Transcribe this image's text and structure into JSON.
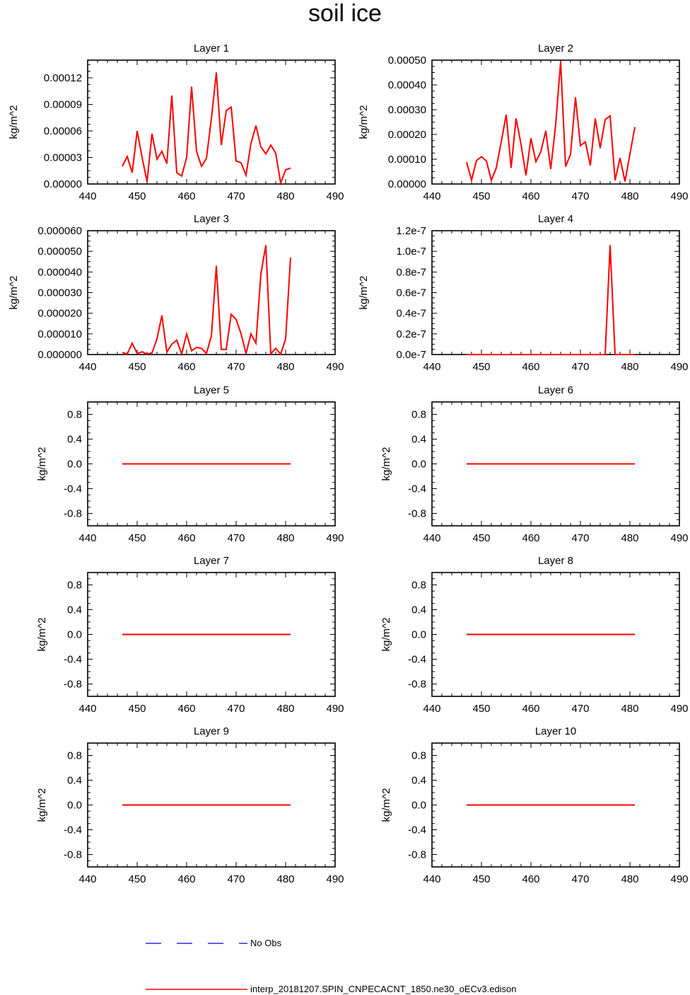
{
  "title": "soil ice",
  "colors": {
    "model": "#ff0000",
    "obs": "#0000cc",
    "axis": "#000000",
    "background": "#ffffff"
  },
  "legend": [
    {
      "label": "No Obs",
      "style": "dashed",
      "color": "#0000cc"
    },
    {
      "label": "interp_20181207.SPIN_CNPECACNT_1850.ne30_oECv3.edison",
      "style": "solid",
      "color": "#ff0000"
    }
  ],
  "chart_data": [
    {
      "type": "line",
      "title": "Layer 1",
      "ylabel": "kg/m^2",
      "xlim": [
        440,
        490
      ],
      "xticks": [
        "440",
        "450",
        "460",
        "470",
        "480",
        "490"
      ],
      "ylim": [
        0,
        0.00014
      ],
      "yticks": [
        {
          "v": 0,
          "label": "0.00000"
        },
        {
          "v": 3e-05,
          "label": "0.00003"
        },
        {
          "v": 6e-05,
          "label": "0.00006"
        },
        {
          "v": 9e-05,
          "label": "0.00009"
        },
        {
          "v": 0.00012,
          "label": "0.00012"
        }
      ],
      "x": [
        447,
        448,
        449,
        450,
        451,
        452,
        453,
        454,
        455,
        456,
        457,
        458,
        459,
        460,
        461,
        462,
        463,
        464,
        465,
        466,
        467,
        468,
        469,
        470,
        471,
        472,
        473,
        474,
        475,
        476,
        477,
        478,
        479,
        480,
        481
      ],
      "values": [
        2e-05,
        3.1e-05,
        1.3e-05,
        6e-05,
        3e-05,
        2.5e-06,
        5.7e-05,
        2.8e-05,
        3.7e-05,
        2.3e-05,
        0.0001,
        1.3e-05,
        9e-06,
        3e-05,
        0.00011,
        3.7e-05,
        2e-05,
        2.9e-05,
        7.4e-05,
        0.000126,
        4.4e-05,
        8.3e-05,
        8.7e-05,
        2.6e-05,
        2.4e-05,
        1e-05,
        4.6e-05,
        6.6e-05,
        4.2e-05,
        3.4e-05,
        4.4e-05,
        3.5e-05,
        1e-06,
        1.6e-05,
        1.8e-05
      ]
    },
    {
      "type": "line",
      "title": "Layer 2",
      "ylabel": "kg/m^2",
      "xlim": [
        440,
        490
      ],
      "xticks": [
        "440",
        "450",
        "460",
        "470",
        "480",
        "490"
      ],
      "ylim": [
        0,
        0.0005
      ],
      "yticks": [
        {
          "v": 0,
          "label": "0.00000"
        },
        {
          "v": 0.0001,
          "label": "0.00010"
        },
        {
          "v": 0.0002,
          "label": "0.00020"
        },
        {
          "v": 0.0003,
          "label": "0.00030"
        },
        {
          "v": 0.0004,
          "label": "0.00040"
        },
        {
          "v": 0.0005,
          "label": "0.00050"
        }
      ],
      "x": [
        447,
        448,
        449,
        450,
        451,
        452,
        453,
        454,
        455,
        456,
        457,
        458,
        459,
        460,
        461,
        462,
        463,
        464,
        465,
        466,
        467,
        468,
        469,
        470,
        471,
        472,
        473,
        474,
        475,
        476,
        477,
        478,
        479,
        480,
        481
      ],
      "values": [
        8.8e-05,
        1.5e-05,
        9.5e-05,
        0.00011,
        9.3e-05,
        1.5e-05,
        6.5e-05,
        0.00017,
        0.00028,
        6.5e-05,
        0.000265,
        0.00016,
        3.5e-05,
        0.000185,
        9e-05,
        0.00013,
        0.000215,
        6e-05,
        0.00024,
        0.000495,
        7e-05,
        0.00012,
        0.00035,
        0.000155,
        0.00017,
        7.5e-05,
        0.000265,
        0.000145,
        0.00026,
        0.000275,
        1.5e-05,
        0.000105,
        1e-05,
        0.00012,
        0.00023
      ]
    },
    {
      "type": "line",
      "title": "Layer 3",
      "ylabel": "kg/m^2",
      "xlim": [
        440,
        490
      ],
      "xticks": [
        "440",
        "450",
        "460",
        "470",
        "480",
        "490"
      ],
      "ylim": [
        0,
        6e-05
      ],
      "yticks": [
        {
          "v": 0,
          "label": "0.000000"
        },
        {
          "v": 1e-05,
          "label": "0.000010"
        },
        {
          "v": 2e-05,
          "label": "0.000020"
        },
        {
          "v": 3e-05,
          "label": "0.000030"
        },
        {
          "v": 4e-05,
          "label": "0.000040"
        },
        {
          "v": 5e-05,
          "label": "0.000050"
        },
        {
          "v": 6e-05,
          "label": "0.000060"
        }
      ],
      "x": [
        447,
        448,
        449,
        450,
        451,
        452,
        453,
        454,
        455,
        456,
        457,
        458,
        459,
        460,
        461,
        462,
        463,
        464,
        465,
        466,
        467,
        468,
        469,
        470,
        471,
        472,
        473,
        474,
        475,
        476,
        477,
        478,
        479,
        480,
        481
      ],
      "values": [
        1e-06,
        2e-07,
        5.5e-06,
        5e-07,
        1.3e-06,
        2e-07,
        8e-07,
        7.5e-06,
        1.9e-05,
        1.2e-06,
        5e-06,
        7e-06,
        3e-07,
        1e-05,
        1.8e-06,
        3.5e-06,
        3e-06,
        5e-07,
        9e-06,
        4.3e-05,
        2.5e-06,
        2.5e-06,
        1.95e-05,
        1.7e-05,
        1e-05,
        5e-07,
        1e-05,
        5.5e-06,
        3.9e-05,
        5.3e-05,
        3e-07,
        3e-06,
        2e-07,
        7.5e-06,
        4.7e-05
      ]
    },
    {
      "type": "line",
      "title": "Layer 4",
      "ylabel": "kg/m^2",
      "xlim": [
        440,
        490
      ],
      "xticks": [
        "440",
        "450",
        "460",
        "470",
        "480",
        "490"
      ],
      "ylim": [
        0,
        1.2e-07
      ],
      "yticks": [
        {
          "v": 0,
          "label": "0.0e-7"
        },
        {
          "v": 2e-08,
          "label": "0.2e-7"
        },
        {
          "v": 4e-08,
          "label": "0.4e-7"
        },
        {
          "v": 6e-08,
          "label": "0.6e-7"
        },
        {
          "v": 8e-08,
          "label": "0.8e-7"
        },
        {
          "v": 1e-07,
          "label": "1.0e-7"
        },
        {
          "v": 1.2e-07,
          "label": "1.2e-7"
        }
      ],
      "x": [
        447,
        448,
        449,
        450,
        451,
        452,
        453,
        454,
        455,
        456,
        457,
        458,
        459,
        460,
        461,
        462,
        463,
        464,
        465,
        466,
        467,
        468,
        469,
        470,
        471,
        472,
        473,
        474,
        475,
        476,
        477,
        478,
        479,
        480,
        481
      ],
      "values": [
        0,
        0,
        0,
        0,
        0,
        0,
        0,
        0,
        0,
        0,
        0,
        0,
        0,
        0,
        0,
        0,
        0,
        0,
        0,
        0,
        0,
        0,
        0,
        0,
        0,
        0,
        0,
        0,
        0,
        1.06e-07,
        0,
        0,
        0,
        0,
        0
      ]
    },
    {
      "type": "line",
      "title": "Layer 5",
      "ylabel": "kg/m^2",
      "xlim": [
        440,
        490
      ],
      "xticks": [
        "440",
        "450",
        "460",
        "470",
        "480",
        "490"
      ],
      "ylim": [
        -1,
        1
      ],
      "yticks": [
        {
          "v": -0.8,
          "label": "-0.8"
        },
        {
          "v": -0.4,
          "label": "-0.4"
        },
        {
          "v": 0,
          "label": "0.0"
        },
        {
          "v": 0.4,
          "label": "0.4"
        },
        {
          "v": 0.8,
          "label": "0.8"
        }
      ],
      "x": [
        447,
        481
      ],
      "values": [
        0,
        0
      ]
    },
    {
      "type": "line",
      "title": "Layer 6",
      "ylabel": "kg/m^2",
      "xlim": [
        440,
        490
      ],
      "xticks": [
        "440",
        "450",
        "460",
        "470",
        "480",
        "490"
      ],
      "ylim": [
        -1,
        1
      ],
      "yticks": [
        {
          "v": -0.8,
          "label": "-0.8"
        },
        {
          "v": -0.4,
          "label": "-0.4"
        },
        {
          "v": 0,
          "label": "0.0"
        },
        {
          "v": 0.4,
          "label": "0.4"
        },
        {
          "v": 0.8,
          "label": "0.8"
        }
      ],
      "x": [
        447,
        481
      ],
      "values": [
        0,
        0
      ]
    },
    {
      "type": "line",
      "title": "Layer 7",
      "ylabel": "kg/m^2",
      "xlim": [
        440,
        490
      ],
      "xticks": [
        "440",
        "450",
        "460",
        "470",
        "480",
        "490"
      ],
      "ylim": [
        -1,
        1
      ],
      "yticks": [
        {
          "v": -0.8,
          "label": "-0.8"
        },
        {
          "v": -0.4,
          "label": "-0.4"
        },
        {
          "v": 0,
          "label": "0.0"
        },
        {
          "v": 0.4,
          "label": "0.4"
        },
        {
          "v": 0.8,
          "label": "0.8"
        }
      ],
      "x": [
        447,
        481
      ],
      "values": [
        0,
        0
      ]
    },
    {
      "type": "line",
      "title": "Layer 8",
      "ylabel": "kg/m^2",
      "xlim": [
        440,
        490
      ],
      "xticks": [
        "440",
        "450",
        "460",
        "470",
        "480",
        "490"
      ],
      "ylim": [
        -1,
        1
      ],
      "yticks": [
        {
          "v": -0.8,
          "label": "-0.8"
        },
        {
          "v": -0.4,
          "label": "-0.4"
        },
        {
          "v": 0,
          "label": "0.0"
        },
        {
          "v": 0.4,
          "label": "0.4"
        },
        {
          "v": 0.8,
          "label": "0.8"
        }
      ],
      "x": [
        447,
        481
      ],
      "values": [
        0,
        0
      ]
    },
    {
      "type": "line",
      "title": "Layer 9",
      "ylabel": "kg/m^2",
      "xlim": [
        440,
        490
      ],
      "xticks": [
        "440",
        "450",
        "460",
        "470",
        "480",
        "490"
      ],
      "ylim": [
        -1,
        1
      ],
      "yticks": [
        {
          "v": -0.8,
          "label": "-0.8"
        },
        {
          "v": -0.4,
          "label": "-0.4"
        },
        {
          "v": 0,
          "label": "0.0"
        },
        {
          "v": 0.4,
          "label": "0.4"
        },
        {
          "v": 0.8,
          "label": "0.8"
        }
      ],
      "x": [
        447,
        481
      ],
      "values": [
        0,
        0
      ]
    },
    {
      "type": "line",
      "title": "Layer 10",
      "ylabel": "kg/m^2",
      "xlim": [
        440,
        490
      ],
      "xticks": [
        "440",
        "450",
        "460",
        "470",
        "480",
        "490"
      ],
      "ylim": [
        -1,
        1
      ],
      "yticks": [
        {
          "v": -0.8,
          "label": "-0.8"
        },
        {
          "v": -0.4,
          "label": "-0.4"
        },
        {
          "v": 0,
          "label": "0.0"
        },
        {
          "v": 0.4,
          "label": "0.4"
        },
        {
          "v": 0.8,
          "label": "0.8"
        }
      ],
      "x": [
        447,
        481
      ],
      "values": [
        0,
        0
      ]
    }
  ]
}
